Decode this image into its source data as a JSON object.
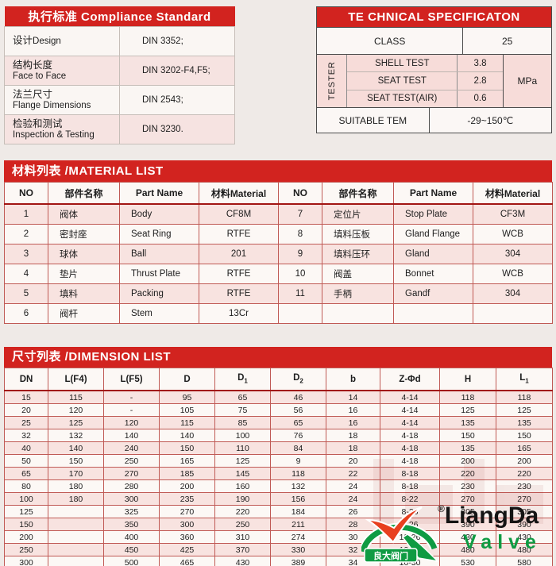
{
  "compliance": {
    "title": "执行标准 Compliance Standard",
    "rows": [
      {
        "label_zh": "设计",
        "label_en": "Design",
        "value": "DIN 3352;"
      },
      {
        "label_zh": "结构长度",
        "label_en": "Face to Face",
        "value": "DIN 3202-F4,F5;"
      },
      {
        "label_zh": "法兰尺寸",
        "label_en": "Flange Dimensions",
        "value": "DIN 2543;"
      },
      {
        "label_zh": "检验和测试",
        "label_en": "Inspection & Testing",
        "value": "DIN 3230."
      }
    ]
  },
  "techspec": {
    "title": "TE CHNICAL SPECIFICATON",
    "class_label": "CLASS",
    "class_value": "25",
    "tester_label": "TESTER",
    "tests": [
      {
        "name": "SHELL TEST",
        "value": "3.8"
      },
      {
        "name": "SEAT TEST",
        "value": "2.8"
      },
      {
        "name": "SEAT TEST(AIR)",
        "value": "0.6"
      }
    ],
    "unit": "MPa",
    "suitable_label": "SUITABLE TEM",
    "suitable_value": "-29~150℃"
  },
  "material": {
    "title": "材料列表 /MATERIAL LIST",
    "headers": [
      "NO",
      "部件名称",
      "Part Name",
      "材料Material",
      "NO",
      "部件名称",
      "Part Name",
      "材料Material"
    ],
    "rows": [
      [
        "1",
        "阀体",
        "Body",
        "CF8M",
        "7",
        "定位片",
        "Stop Plate",
        "CF3M"
      ],
      [
        "2",
        "密封座",
        "Seat Ring",
        "RTFE",
        "8",
        "填料压板",
        "Gland Flange",
        "WCB"
      ],
      [
        "3",
        "球体",
        "Ball",
        "201",
        "9",
        "填料压环",
        "Gland",
        "304"
      ],
      [
        "4",
        "垫片",
        "Thrust Plate",
        "RTFE",
        "10",
        "阀盖",
        "Bonnet",
        "WCB"
      ],
      [
        "5",
        "填料",
        "Packing",
        "RTFE",
        "11",
        "手柄",
        "Gandf",
        "304"
      ],
      [
        "6",
        "阀杆",
        "Stem",
        "13Cr",
        "",
        "",
        "",
        ""
      ]
    ]
  },
  "dimension": {
    "title": "尺寸列表 /DIMENSION LIST",
    "headers": [
      {
        "t": "DN"
      },
      {
        "t": "L(F4)"
      },
      {
        "t": "L(F5)"
      },
      {
        "t": "D"
      },
      {
        "t": "D",
        "s": "1"
      },
      {
        "t": "D",
        "s": "2"
      },
      {
        "t": "b"
      },
      {
        "t": "Z-Φd"
      },
      {
        "t": "H"
      },
      {
        "t": "L",
        "s": "1"
      }
    ],
    "rows": [
      [
        "15",
        "115",
        "-",
        "95",
        "65",
        "46",
        "14",
        "4-14",
        "118",
        "118"
      ],
      [
        "20",
        "120",
        "-",
        "105",
        "75",
        "56",
        "16",
        "4-14",
        "125",
        "125"
      ],
      [
        "25",
        "125",
        "120",
        "115",
        "85",
        "65",
        "16",
        "4-14",
        "135",
        "135"
      ],
      [
        "32",
        "132",
        "140",
        "140",
        "100",
        "76",
        "18",
        "4-18",
        "150",
        "150"
      ],
      [
        "40",
        "140",
        "240",
        "150",
        "110",
        "84",
        "18",
        "4-18",
        "135",
        "165"
      ],
      [
        "50",
        "150",
        "250",
        "165",
        "125",
        "9",
        "20",
        "4-18",
        "200",
        "200"
      ],
      [
        "65",
        "170",
        "270",
        "185",
        "145",
        "118",
        "22",
        "8-18",
        "220",
        "220"
      ],
      [
        "80",
        "180",
        "280",
        "200",
        "160",
        "132",
        "24",
        "8-18",
        "230",
        "230"
      ],
      [
        "100",
        "180",
        "300",
        "235",
        "190",
        "156",
        "24",
        "8-22",
        "270",
        "270"
      ],
      [
        "125",
        "",
        "325",
        "270",
        "220",
        "184",
        "26",
        "8-26",
        "305",
        "305"
      ],
      [
        "150",
        "",
        "350",
        "300",
        "250",
        "211",
        "28",
        "8-26",
        "390",
        "390"
      ],
      [
        "200",
        "",
        "400",
        "360",
        "310",
        "274",
        "30",
        "12-26",
        "430",
        "430"
      ],
      [
        "250",
        "",
        "450",
        "425",
        "370",
        "330",
        "32",
        "12-30",
        "480",
        "480"
      ],
      [
        "300",
        "",
        "500",
        "465",
        "430",
        "389",
        "34",
        "16-30",
        "530",
        "580"
      ]
    ]
  },
  "logo": {
    "registered": "®",
    "brand_line1": "LiangDa",
    "brand_line2": "Valve",
    "badge_text": "良大阀门",
    "colors": {
      "brand1": "#141414",
      "brand2": "#0f9b43",
      "swoosh": "#e8401f",
      "arc": "#0f9b43"
    }
  },
  "colors": {
    "header_red": "#d2231f",
    "border_red": "#c05a55",
    "thick_red": "#a21513",
    "row_pink": "#f8e3e0",
    "row_white": "#fcf8f5",
    "page_bg": "#efeae7",
    "spec_border": "#4c4c4c"
  }
}
